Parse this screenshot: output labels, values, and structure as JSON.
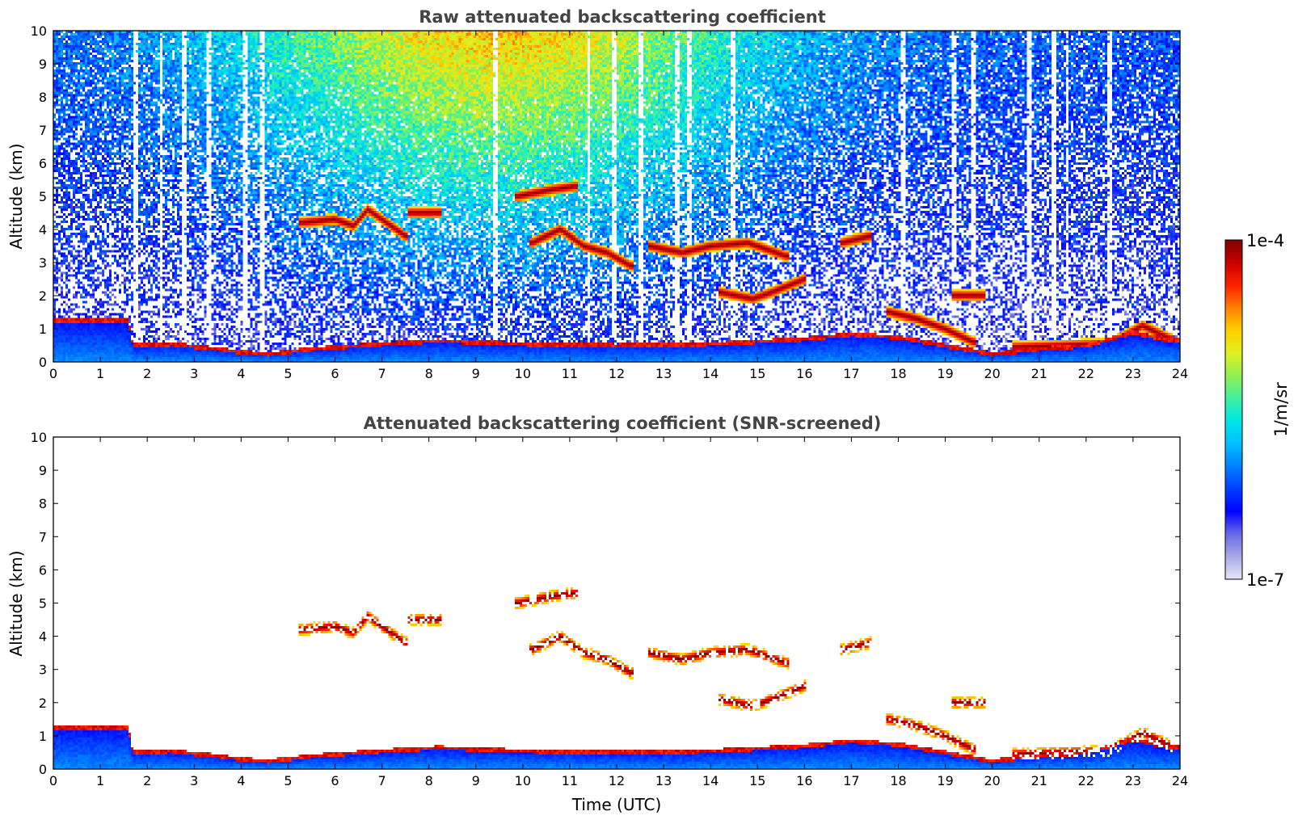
{
  "chart_data": [
    {
      "type": "heatmap",
      "title": "Raw attenuated backscattering coefficient",
      "xlabel": "",
      "ylabel": "Altitude (km)",
      "xlim": [
        0,
        24
      ],
      "ylim": [
        0,
        10
      ],
      "x_ticks": [
        "0",
        "1",
        "2",
        "3",
        "4",
        "5",
        "6",
        "7",
        "8",
        "9",
        "10",
        "11",
        "12",
        "13",
        "14",
        "15",
        "16",
        "17",
        "18",
        "19",
        "20",
        "21",
        "22",
        "23",
        "24"
      ],
      "y_ticks": [
        "0",
        "1",
        "2",
        "3",
        "4",
        "5",
        "6",
        "7",
        "8",
        "9",
        "10"
      ],
      "features": {
        "boundary_layer_top": [
          [
            0,
            1.3
          ],
          [
            1.6,
            1.3
          ],
          [
            1.7,
            0.55
          ],
          [
            2.5,
            0.6
          ],
          [
            3.5,
            0.45
          ],
          [
            4.0,
            0.35
          ],
          [
            4.6,
            0.3
          ],
          [
            5.5,
            0.45
          ],
          [
            7.0,
            0.6
          ],
          [
            8.2,
            0.7
          ],
          [
            10,
            0.6
          ],
          [
            12,
            0.55
          ],
          [
            14,
            0.6
          ],
          [
            16,
            0.75
          ],
          [
            17,
            0.9
          ],
          [
            18,
            0.8
          ],
          [
            19,
            0.55
          ],
          [
            20,
            0.3
          ],
          [
            21,
            0.45
          ],
          [
            22,
            0.55
          ],
          [
            23,
            0.95
          ],
          [
            23.8,
            0.7
          ]
        ],
        "cloud_layers": [
          {
            "x": [
              5.3,
              6.0,
              6.4,
              6.7,
              7.0,
              7.5
            ],
            "y": [
              4.2,
              4.3,
              4.1,
              4.6,
              4.3,
              3.8
            ]
          },
          {
            "x": [
              7.6,
              8.2
            ],
            "y": [
              4.5,
              4.5
            ]
          },
          {
            "x": [
              9.9,
              10.6,
              11.1
            ],
            "y": [
              5.0,
              5.2,
              5.3
            ]
          },
          {
            "x": [
              10.2,
              10.8,
              11.3,
              11.8,
              12.3
            ],
            "y": [
              3.6,
              4.0,
              3.5,
              3.3,
              2.9
            ]
          },
          {
            "x": [
              12.7,
              13.4,
              14.0,
              14.8,
              15.6
            ],
            "y": [
              3.5,
              3.3,
              3.5,
              3.6,
              3.2
            ]
          },
          {
            "x": [
              14.2,
              14.9,
              15.3,
              16.0
            ],
            "y": [
              2.1,
              1.9,
              2.1,
              2.5
            ]
          },
          {
            "x": [
              16.8,
              17.4
            ],
            "y": [
              3.6,
              3.8
            ]
          },
          {
            "x": [
              17.8,
              18.4,
              19.0,
              19.6
            ],
            "y": [
              1.5,
              1.3,
              1.0,
              0.6
            ]
          },
          {
            "x": [
              19.2,
              19.8
            ],
            "y": [
              2.0,
              2.0
            ]
          },
          {
            "x": [
              20.5,
              21.5,
              22.5,
              23.2,
              23.8
            ],
            "y": [
              0.45,
              0.5,
              0.55,
              1.1,
              0.7
            ]
          }
        ],
        "low_signal_columns": [
          1.75,
          2.3,
          2.8,
          3.3,
          4.1,
          4.45,
          9.4,
          11.4,
          11.95,
          12.5,
          13.3,
          13.55,
          14.5,
          18.1,
          19.2,
          19.6,
          20.8,
          21.3,
          21.6,
          22.5
        ]
      }
    },
    {
      "type": "heatmap",
      "title": "Attenuated backscattering coefficient (SNR-screened)",
      "xlabel": "Time (UTC)",
      "ylabel": "Altitude (km)",
      "xlim": [
        0,
        24
      ],
      "ylim": [
        0,
        10
      ],
      "x_ticks": [
        "0",
        "1",
        "2",
        "3",
        "4",
        "5",
        "6",
        "7",
        "8",
        "9",
        "10",
        "11",
        "12",
        "13",
        "14",
        "15",
        "16",
        "17",
        "18",
        "19",
        "20",
        "21",
        "22",
        "23",
        "24"
      ],
      "y_ticks": [
        "0",
        "1",
        "2",
        "3",
        "4",
        "5",
        "6",
        "7",
        "8",
        "9",
        "10"
      ],
      "screened": true
    }
  ],
  "colorbar": {
    "label": "1/m/sr",
    "max_label": "1e-4",
    "min_label": "1e-7",
    "scale": "log",
    "range": [
      1e-07,
      0.0001
    ],
    "colormap": [
      "#e6e6f6",
      "#a8a8ea",
      "#6a6ae6",
      "#0000ff",
      "#0040ff",
      "#0080ff",
      "#00c0ff",
      "#00e6e6",
      "#40f0a0",
      "#90f050",
      "#e0f020",
      "#ffd000",
      "#ff8000",
      "#ff2000",
      "#c80000",
      "#800000"
    ]
  }
}
